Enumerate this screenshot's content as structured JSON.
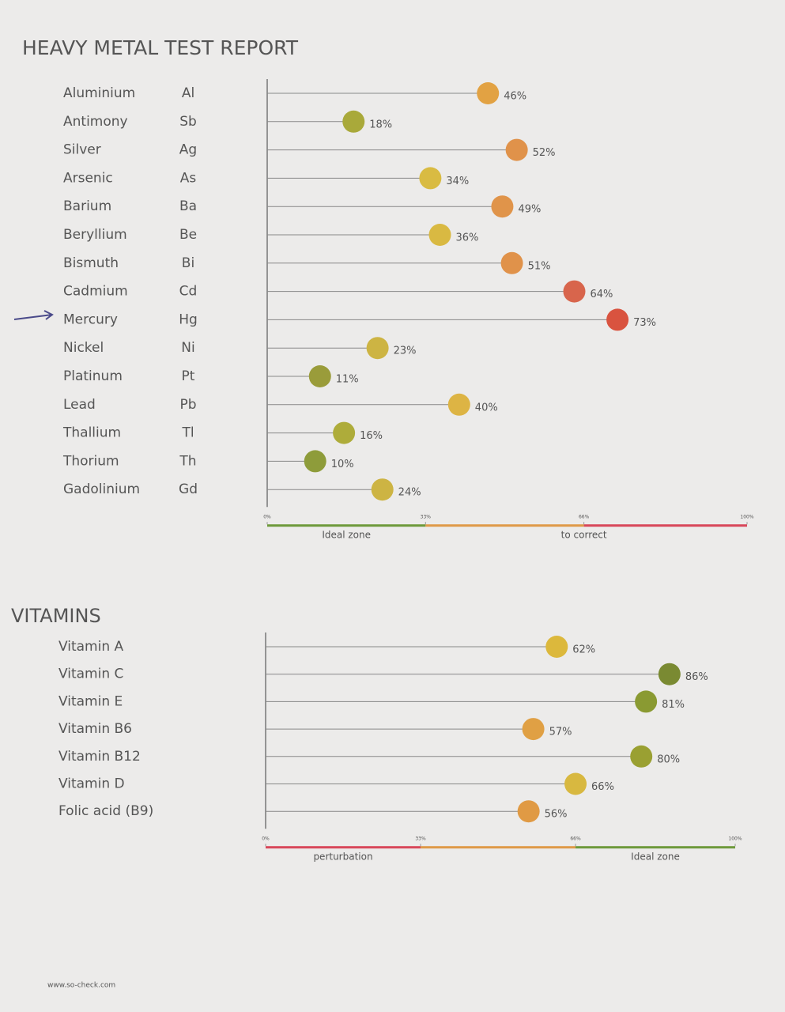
{
  "heading": "HEAVY METAL TEST REPORT",
  "footer": "www.so-check.com",
  "chart_data": [
    {
      "type": "dot",
      "title": null,
      "categories": [
        "Aluminium",
        "Antimony",
        "Silver",
        "Arsenic",
        "Barium",
        "Beryllium",
        "Bismuth",
        "Cadmium",
        "Mercury",
        "Nickel",
        "Platinum",
        "Lead",
        "Thallium",
        "Thorium",
        "Gadolinium"
      ],
      "symbols": [
        "Al",
        "Sb",
        "Ag",
        "As",
        "Ba",
        "Be",
        "Bi",
        "Cd",
        "Hg",
        "Ni",
        "Pt",
        "Pb",
        "Tl",
        "Th",
        "Gd"
      ],
      "values": [
        46,
        18,
        52,
        34,
        49,
        36,
        51,
        64,
        73,
        23,
        11,
        40,
        16,
        10,
        24
      ],
      "value_labels": [
        "46%",
        "18%",
        "52%",
        "34%",
        "49%",
        "36%",
        "51%",
        "64%",
        "73%",
        "23%",
        "11%",
        "40%",
        "16%",
        "10%",
        "24%"
      ],
      "colors": [
        "#e2a243",
        "#a9a93a",
        "#e0924a",
        "#d9bb42",
        "#e0944a",
        "#d9b942",
        "#e0924a",
        "#d8654c",
        "#d9533f",
        "#cdb443",
        "#9a9c3a",
        "#ddb444",
        "#aeac3a",
        "#8e9c3a",
        "#cdb443"
      ],
      "xlim": [
        0,
        100
      ],
      "xticks": [
        {
          "value": 0,
          "label": "0%"
        },
        {
          "value": 33,
          "label": "33%"
        },
        {
          "value": 66,
          "label": "66%"
        },
        {
          "value": 100,
          "label": "100%"
        }
      ],
      "zones": [
        {
          "from": 0,
          "to": 33,
          "color": "#6e9a3c",
          "label": "Ideal zone"
        },
        {
          "from": 33,
          "to": 66,
          "color": "#df9a48",
          "label": null
        },
        {
          "from": 66,
          "to": 100,
          "color": "#d8475a",
          "label": null
        }
      ],
      "zone_label_extra": "to correct"
    },
    {
      "type": "dot",
      "title": "VITAMINS",
      "categories": [
        "Vitamin A",
        "Vitamin C",
        "Vitamin E",
        "Vitamin B6",
        "Vitamin B12",
        "Vitamin D",
        "Folic acid (B9)"
      ],
      "values": [
        62,
        86,
        81,
        57,
        80,
        66,
        56
      ],
      "value_labels": [
        "62%",
        "86%",
        "81%",
        "57%",
        "80%",
        "66%",
        "56%"
      ],
      "colors": [
        "#dcb83c",
        "#7a8a32",
        "#8a9a32",
        "#e0a044",
        "#9aa032",
        "#d8b840",
        "#e09a44"
      ],
      "xlim": [
        0,
        100
      ],
      "xticks": [
        {
          "value": 0,
          "label": "0%"
        },
        {
          "value": 33,
          "label": "33%"
        },
        {
          "value": 66,
          "label": "66%"
        },
        {
          "value": 100,
          "label": "100%"
        }
      ],
      "zones": [
        {
          "from": 0,
          "to": 33,
          "color": "#d8475a",
          "label": "perturbation"
        },
        {
          "from": 33,
          "to": 66,
          "color": "#df9a48",
          "label": null
        },
        {
          "from": 66,
          "to": 100,
          "color": "#6e9a3c",
          "label": "Ideal zone"
        }
      ]
    }
  ]
}
